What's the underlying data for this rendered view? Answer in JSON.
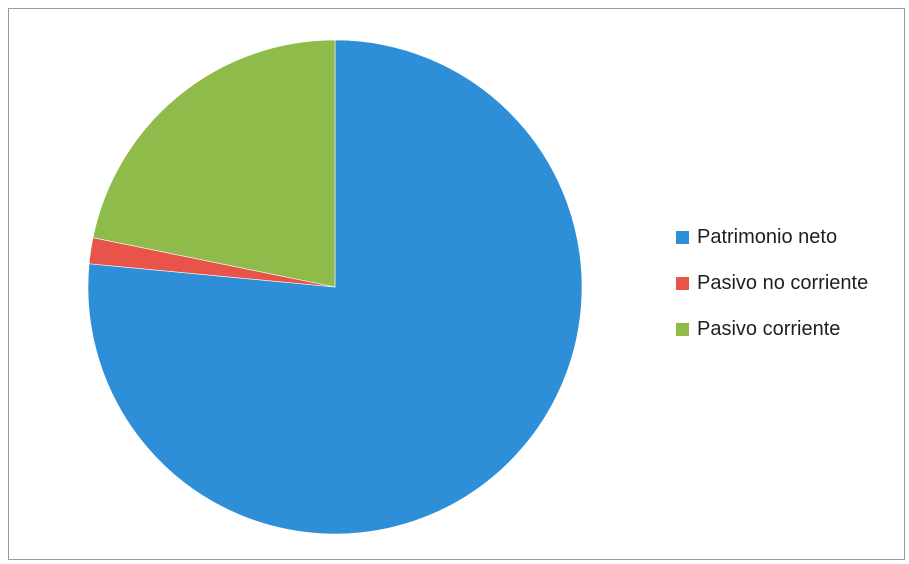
{
  "chart_data": {
    "type": "pie",
    "title": "",
    "legend_position": "right",
    "slices": [
      {
        "label": "Patrimonio neto",
        "value": 76.5,
        "color": "#2e8fd8"
      },
      {
        "label": "Pasivo no corriente",
        "value": 1.7,
        "color": "#e8534a"
      },
      {
        "label": "Pasivo corriente",
        "value": 21.8,
        "color": "#8fbb4b"
      }
    ]
  }
}
